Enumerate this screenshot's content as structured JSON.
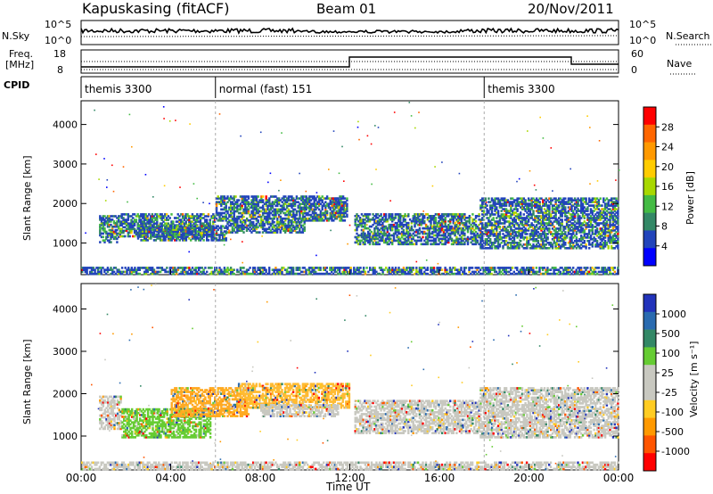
{
  "header": {
    "title": "Kapuskasing (fitACF)",
    "beam": "Beam 01",
    "date": "20/Nov/2011"
  },
  "noise_panel": {
    "left_label": "N.Sky",
    "right_label": "N.Search",
    "left_ticks": [
      "10^5",
      "10^0"
    ],
    "right_ticks": [
      "10^5",
      "10^0"
    ]
  },
  "freq_panel": {
    "left_label_1": "Freq.",
    "left_label_2": "[MHz]",
    "right_label": "Nave",
    "left_ticks": [
      "18",
      "8"
    ],
    "right_ticks": [
      "60",
      "0"
    ]
  },
  "cpid_panel": {
    "label": "CPID",
    "segments": [
      {
        "start_hour": 0,
        "end_hour": 6,
        "text": "themis 3300"
      },
      {
        "start_hour": 6,
        "end_hour": 18,
        "text": "normal (fast) 151"
      },
      {
        "start_hour": 18,
        "end_hour": 24,
        "text": "themis 3300"
      }
    ]
  },
  "chart_data": [
    {
      "type": "heatmap",
      "name": "power",
      "ylabel": "Slant Range [km]",
      "yticks": [
        "4000",
        "3000",
        "2000",
        "1000"
      ],
      "ylim": [
        200,
        4600
      ],
      "xlim": [
        0,
        24
      ],
      "colorbar": {
        "label": "Power [dB]",
        "ticks": [
          "28",
          "24",
          "20",
          "16",
          "12",
          "8",
          "4"
        ],
        "colors": [
          "#ff0000",
          "#ff6600",
          "#ff9900",
          "#ffcc00",
          "#a8d800",
          "#44bb44",
          "#338866",
          "#2244bb",
          "#0000ff"
        ]
      },
      "bands": [
        {
          "x0": 0.8,
          "x1": 1.7,
          "y0": 1050,
          "y1": 1750
        },
        {
          "x0": 1.7,
          "x1": 6,
          "y0": 1200,
          "y1": 1800
        },
        {
          "x0": 2.5,
          "x1": 6.5,
          "y0": 1100,
          "y1": 1500
        },
        {
          "x0": 6,
          "x1": 11.8,
          "y0": 1600,
          "y1": 2250
        },
        {
          "x0": 6.5,
          "x1": 10,
          "y0": 1300,
          "y1": 1600
        },
        {
          "x0": 11.2,
          "x1": 11.9,
          "y0": 1700,
          "y1": 2200
        },
        {
          "x0": 12.2,
          "x1": 17.8,
          "y0": 1000,
          "y1": 1800
        },
        {
          "x0": 17.8,
          "x1": 24,
          "y0": 900,
          "y1": 2200
        },
        {
          "x0": 0,
          "x1": 24,
          "y0": 250,
          "y1": 450
        }
      ]
    },
    {
      "type": "heatmap",
      "name": "velocity",
      "ylabel": "Slant Range [km]",
      "yticks": [
        "4000",
        "3000",
        "2000",
        "1000"
      ],
      "ylim": [
        200,
        4600
      ],
      "xlim": [
        0,
        24
      ],
      "xlabel": "Time UT",
      "xticks": [
        "00:00",
        "04:00",
        "08:00",
        "12:00",
        "16:00",
        "20:00",
        "00:00"
      ],
      "colorbar": {
        "label": "Velocity [m s⁻¹]",
        "ticks": [
          "1000",
          "500",
          "100",
          "25",
          "-25",
          "-100",
          "-500",
          "-1000"
        ],
        "colors": [
          "#2233bb",
          "#2a6bb0",
          "#338866",
          "#66cc33",
          "#c8c8c0",
          "#c8c8c0",
          "#ffcc22",
          "#ff9900",
          "#ff5500",
          "#ff0000"
        ]
      },
      "bands": [
        {
          "x0": 0.8,
          "x1": 1.8,
          "y0": 1200,
          "y1": 2000,
          "color": "#c8c8c0"
        },
        {
          "x0": 1.8,
          "x1": 5.8,
          "y0": 1000,
          "y1": 1700,
          "color": "#66cc33"
        },
        {
          "x0": 4,
          "x1": 7.5,
          "y0": 1500,
          "y1": 2200,
          "color": "#ffaa22"
        },
        {
          "x0": 7,
          "x1": 12,
          "y0": 1700,
          "y1": 2300,
          "color": "#ffbb33"
        },
        {
          "x0": 8,
          "x1": 11.5,
          "y0": 1500,
          "y1": 1800,
          "color": "#c8c8c0"
        },
        {
          "x0": 12.2,
          "x1": 17.8,
          "y0": 1100,
          "y1": 1900,
          "color": "#c8c8c0"
        },
        {
          "x0": 17.8,
          "x1": 24,
          "y0": 1000,
          "y1": 2200,
          "color": "#c8c8c0"
        },
        {
          "x0": 0,
          "x1": 24,
          "y0": 250,
          "y1": 450,
          "color": "#c8c8c0"
        }
      ]
    }
  ]
}
